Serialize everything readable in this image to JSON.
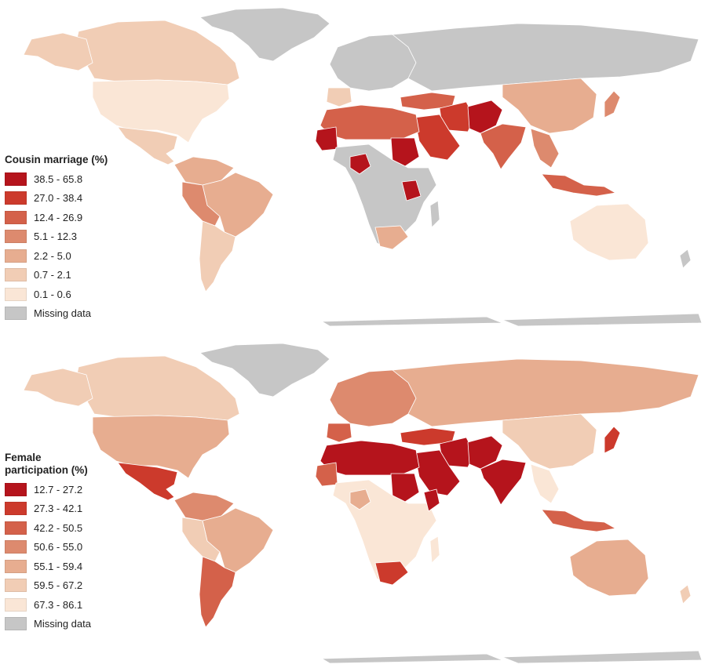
{
  "maps": [
    {
      "id": "cousin",
      "legend": {
        "title": "Cousin marriage (%)",
        "items": [
          {
            "label": "38.5 - 65.8",
            "color": "#b5141c"
          },
          {
            "label": "27.0 - 38.4",
            "color": "#cc3a2c"
          },
          {
            "label": "12.4 - 26.9",
            "color": "#d4614a"
          },
          {
            "label": "5.1 - 12.3",
            "color": "#dd8a6e"
          },
          {
            "label": "2.2 - 5.0",
            "color": "#e7ad90"
          },
          {
            "label": "0.7 - 2.1",
            "color": "#f1cdb5"
          },
          {
            "label": "0.1 - 0.6",
            "color": "#fae6d6"
          },
          {
            "label": "Missing data",
            "color": "#c6c6c6"
          }
        ]
      }
    },
    {
      "id": "female",
      "legend": {
        "title": "Female\nparticipation (%)",
        "items": [
          {
            "label": "12.7 - 27.2",
            "color": "#b5141c"
          },
          {
            "label": "27.3 - 42.1",
            "color": "#cc3a2c"
          },
          {
            "label": "42.2 - 50.5",
            "color": "#d4614a"
          },
          {
            "label": "50.6 - 55.0",
            "color": "#dd8a6e"
          },
          {
            "label": "55.1 - 59.4",
            "color": "#e7ad90"
          },
          {
            "label": "59.5 - 67.2",
            "color": "#f1cdb5"
          },
          {
            "label": "67.3 - 86.1",
            "color": "#fae6d6"
          },
          {
            "label": "Missing data",
            "color": "#c6c6c6"
          }
        ]
      }
    }
  ],
  "palette": {
    "c1": "#b5141c",
    "c2": "#cc3a2c",
    "c3": "#d4614a",
    "c4": "#dd8a6e",
    "c5": "#e7ad90",
    "c6": "#f1cdb5",
    "c7": "#fae6d6",
    "missing": "#c6c6c6"
  }
}
